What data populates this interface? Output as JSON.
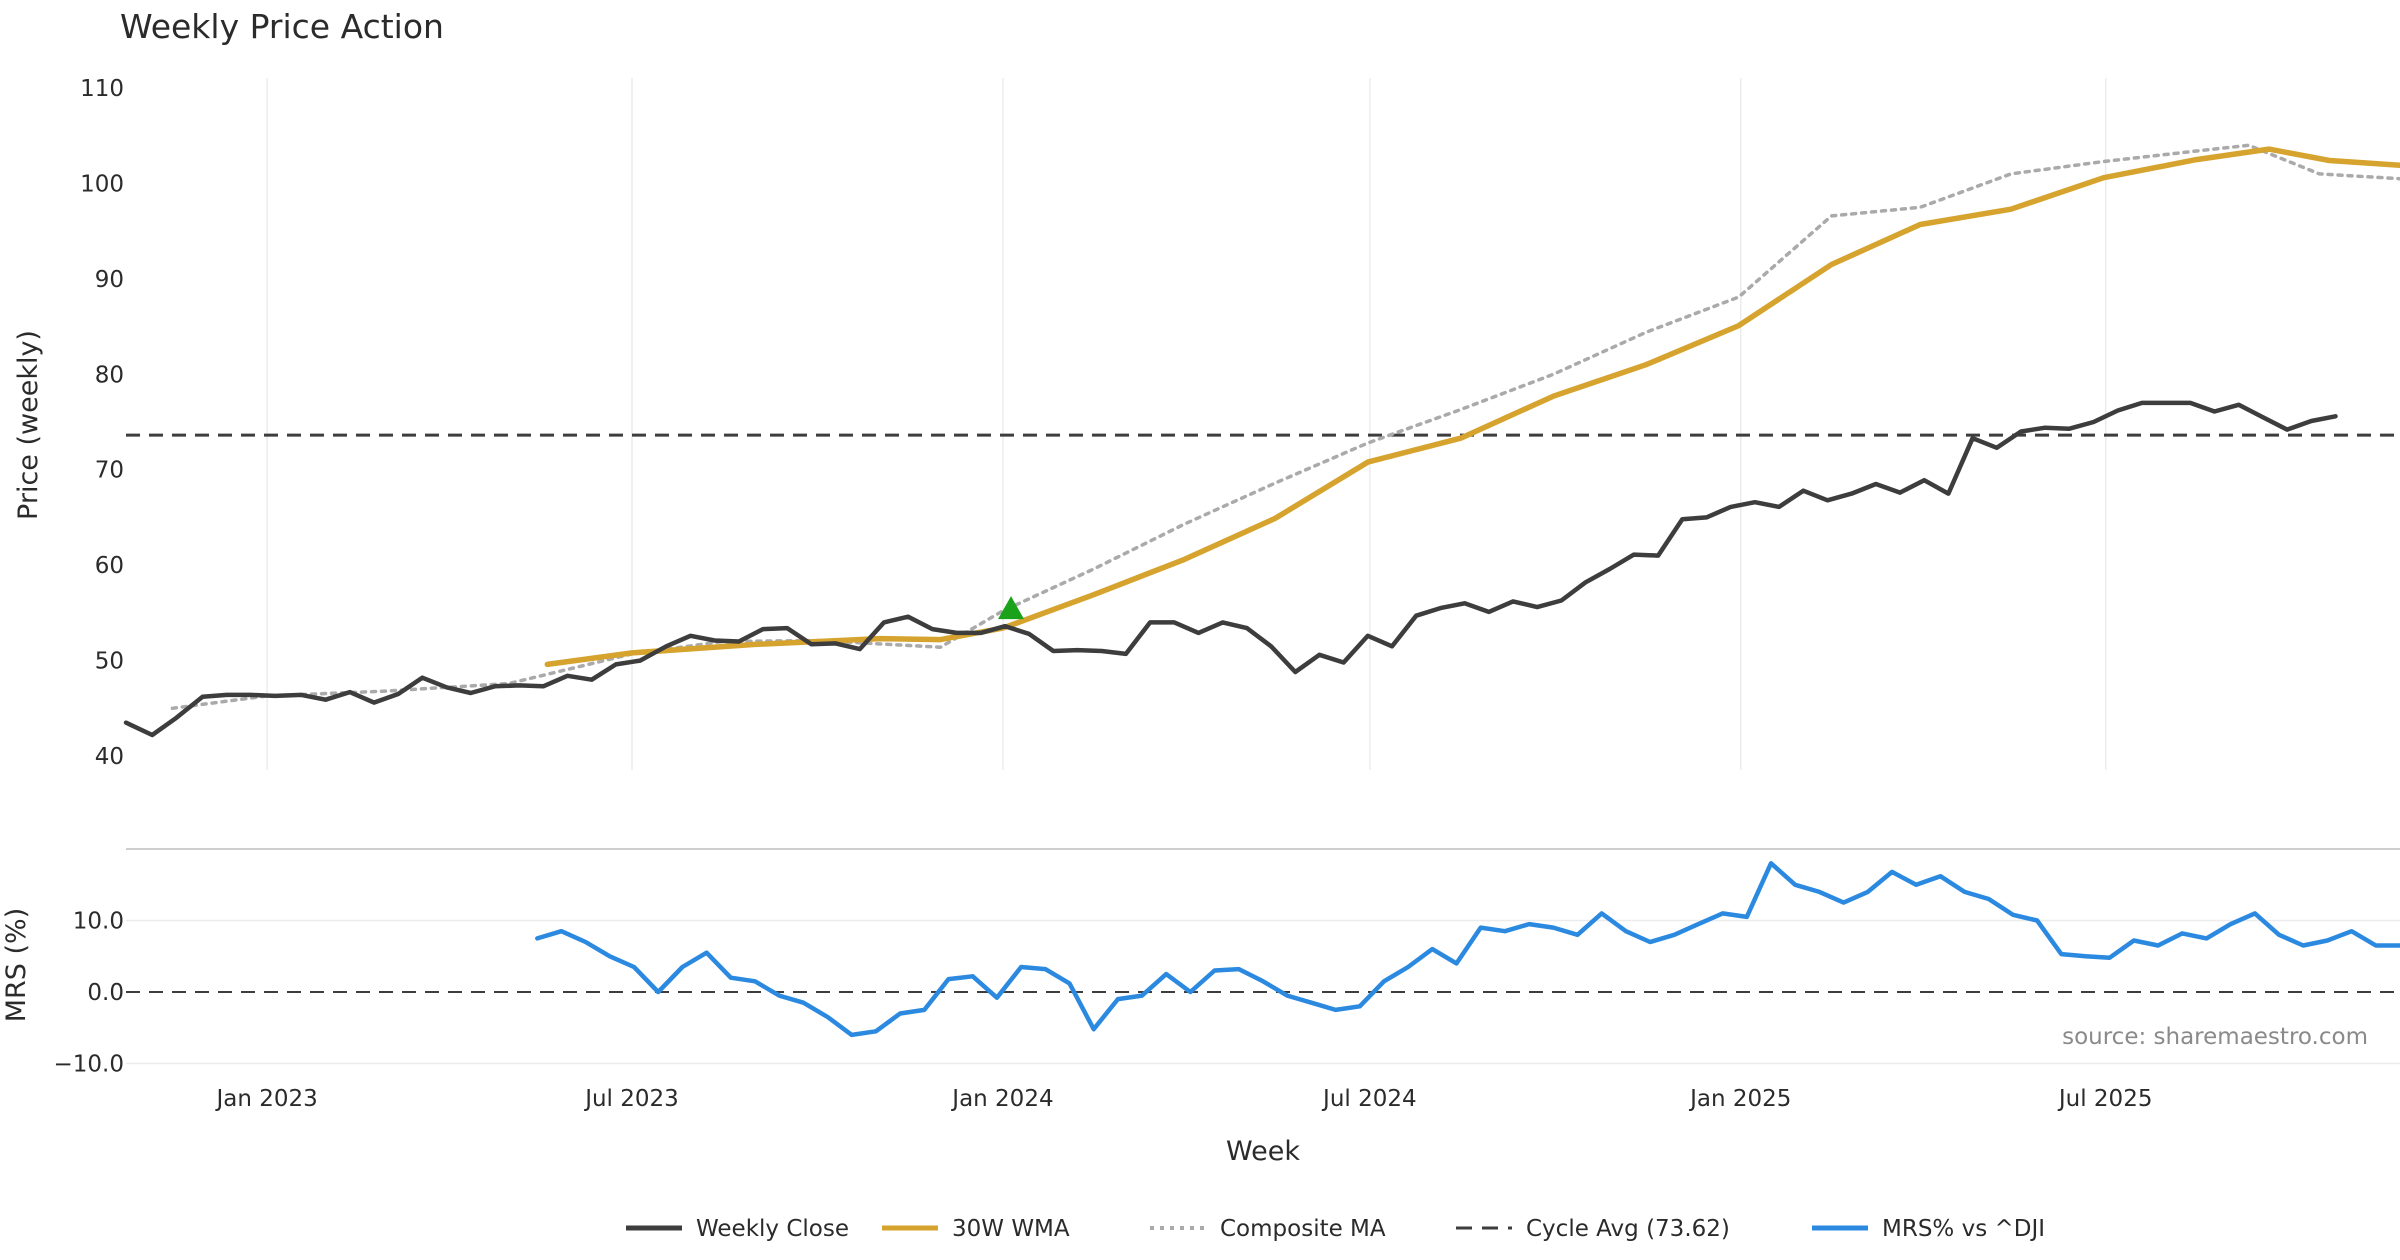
{
  "chart_data": [
    {
      "type": "line",
      "title": "Weekly Price Action",
      "xlabel": "",
      "ylabel": "Price (weekly)",
      "ylim": [
        40,
        110
      ],
      "yticks": [
        "40",
        "50",
        "60",
        "70",
        "80",
        "90",
        "100",
        "110"
      ],
      "x_ticks": [
        {
          "date": "2023-01-01",
          "label": "Jan 2023"
        },
        {
          "date": "2023-07-01",
          "label": "Jul 2023"
        },
        {
          "date": "2024-01-01",
          "label": "Jan 2024"
        },
        {
          "date": "2024-07-01",
          "label": "Jul 2024"
        },
        {
          "date": "2025-01-01",
          "label": "Jan 2025"
        },
        {
          "date": "2025-07-01",
          "label": "Jul 2025"
        }
      ],
      "xlim": [
        "2022-10-23",
        "2025-11-24"
      ],
      "grid": true,
      "cycle_avg": 73.62,
      "signal_marker": {
        "date": "2024-01-05",
        "value": 55.5,
        "color": "#1aa31a",
        "shape": "triangle-up"
      },
      "series": [
        {
          "name": "Weekly Close",
          "color": "#3d3d3d",
          "points": [
            [
              "2022-10-23",
              43.5
            ],
            [
              "2022-11-05",
              42.2
            ],
            [
              "2022-11-17",
              44.0
            ],
            [
              "2022-11-30",
              46.2
            ],
            [
              "2022-12-12",
              46.4
            ],
            [
              "2022-12-24",
              46.4
            ],
            [
              "2023-01-05",
              46.3
            ],
            [
              "2023-01-18",
              46.4
            ],
            [
              "2023-01-30",
              45.9
            ],
            [
              "2023-02-11",
              46.7
            ],
            [
              "2023-02-23",
              45.6
            ],
            [
              "2023-03-07",
              46.5
            ],
            [
              "2023-03-19",
              48.2
            ],
            [
              "2023-03-31",
              47.2
            ],
            [
              "2023-04-12",
              46.6
            ],
            [
              "2023-04-24",
              47.3
            ],
            [
              "2023-05-06",
              47.4
            ],
            [
              "2023-05-18",
              47.3
            ],
            [
              "2023-05-30",
              48.4
            ],
            [
              "2023-06-11",
              48.0
            ],
            [
              "2023-06-23",
              49.6
            ],
            [
              "2023-07-05",
              50.0
            ],
            [
              "2023-07-18",
              51.5
            ],
            [
              "2023-07-30",
              52.6
            ],
            [
              "2023-08-11",
              52.1
            ],
            [
              "2023-08-23",
              52.0
            ],
            [
              "2023-09-04",
              53.3
            ],
            [
              "2023-09-16",
              53.4
            ],
            [
              "2023-09-28",
              51.7
            ],
            [
              "2023-10-10",
              51.8
            ],
            [
              "2023-10-22",
              51.2
            ],
            [
              "2023-11-03",
              54.0
            ],
            [
              "2023-11-15",
              54.6
            ],
            [
              "2023-11-27",
              53.3
            ],
            [
              "2023-12-09",
              52.9
            ],
            [
              "2023-12-21",
              52.9
            ],
            [
              "2024-01-02",
              53.6
            ],
            [
              "2024-01-14",
              52.8
            ],
            [
              "2024-01-26",
              51.0
            ],
            [
              "2024-02-07",
              51.1
            ],
            [
              "2024-02-19",
              51.0
            ],
            [
              "2024-03-02",
              50.7
            ],
            [
              "2024-03-14",
              54.0
            ],
            [
              "2024-03-26",
              54.0
            ],
            [
              "2024-04-07",
              52.9
            ],
            [
              "2024-04-19",
              54.0
            ],
            [
              "2024-05-01",
              53.4
            ],
            [
              "2024-05-13",
              51.5
            ],
            [
              "2024-05-25",
              48.8
            ],
            [
              "2024-06-06",
              50.6
            ],
            [
              "2024-06-18",
              49.8
            ],
            [
              "2024-06-30",
              52.6
            ],
            [
              "2024-07-12",
              51.5
            ],
            [
              "2024-07-24",
              54.7
            ],
            [
              "2024-08-05",
              55.5
            ],
            [
              "2024-08-17",
              56.0
            ],
            [
              "2024-08-29",
              55.1
            ],
            [
              "2024-09-10",
              56.2
            ],
            [
              "2024-09-22",
              55.6
            ],
            [
              "2024-10-04",
              56.3
            ],
            [
              "2024-10-16",
              58.2
            ],
            [
              "2024-10-28",
              59.6
            ],
            [
              "2024-11-09",
              61.1
            ],
            [
              "2024-11-21",
              61.0
            ],
            [
              "2024-12-03",
              64.8
            ],
            [
              "2024-12-15",
              65.0
            ],
            [
              "2024-12-27",
              66.1
            ],
            [
              "2025-01-08",
              66.6
            ],
            [
              "2025-01-20",
              66.1
            ],
            [
              "2025-02-01",
              67.8
            ],
            [
              "2025-02-13",
              66.8
            ],
            [
              "2025-02-25",
              67.5
            ],
            [
              "2025-03-09",
              68.5
            ],
            [
              "2025-03-21",
              67.6
            ],
            [
              "2025-04-02",
              68.9
            ],
            [
              "2025-04-14",
              67.5
            ],
            [
              "2025-04-26",
              73.3
            ],
            [
              "2025-05-08",
              72.3
            ],
            [
              "2025-05-20",
              74.0
            ],
            [
              "2025-06-01",
              74.4
            ],
            [
              "2025-06-13",
              74.3
            ],
            [
              "2025-06-25",
              75.0
            ],
            [
              "2025-07-07",
              76.2
            ],
            [
              "2025-07-19",
              77.0
            ],
            [
              "2025-07-31",
              77.0
            ],
            [
              "2025-08-12",
              77.0
            ],
            [
              "2025-08-24",
              76.1
            ],
            [
              "2025-09-05",
              76.8
            ],
            [
              "2025-09-17",
              75.5
            ],
            [
              "2025-09-29",
              74.2
            ],
            [
              "2025-10-11",
              75.1
            ],
            [
              "2025-10-23",
              75.6
            ]
          ]
        },
        {
          "name": "30W WMA",
          "color": "#d6a42e",
          "points": [
            [
              "2023-05-20",
              49.6
            ],
            [
              "2023-07-01",
              50.8
            ],
            [
              "2023-09-01",
              51.7
            ],
            [
              "2023-11-01",
              52.3
            ],
            [
              "2023-12-01",
              52.2
            ],
            [
              "2024-01-01",
              53.4
            ],
            [
              "2024-02-15",
              56.9
            ],
            [
              "2024-03-31",
              60.6
            ],
            [
              "2024-05-15",
              64.9
            ],
            [
              "2024-06-30",
              70.8
            ],
            [
              "2024-08-15",
              73.3
            ],
            [
              "2024-09-30",
              77.7
            ],
            [
              "2024-11-15",
              81.0
            ],
            [
              "2024-12-31",
              85.1
            ],
            [
              "2025-02-15",
              91.5
            ],
            [
              "2025-03-31",
              95.7
            ],
            [
              "2025-05-15",
              97.3
            ],
            [
              "2025-06-30",
              100.6
            ],
            [
              "2025-08-15",
              102.5
            ],
            [
              "2025-09-20",
              103.6
            ],
            [
              "2025-10-20",
              102.4
            ],
            [
              "2025-11-24",
              101.9
            ]
          ]
        },
        {
          "name": "Composite MA",
          "color": "#aaaaaa",
          "points": [
            [
              "2022-11-15",
              45.0
            ],
            [
              "2023-01-01",
              46.3
            ],
            [
              "2023-03-01",
              46.8
            ],
            [
              "2023-05-01",
              47.6
            ],
            [
              "2023-07-01",
              50.7
            ],
            [
              "2023-08-15",
              52.0
            ],
            [
              "2023-10-01",
              52.1
            ],
            [
              "2023-12-01",
              51.4
            ],
            [
              "2024-01-01",
              55.2
            ],
            [
              "2024-02-15",
              59.6
            ],
            [
              "2024-03-31",
              64.3
            ],
            [
              "2024-05-15",
              68.6
            ],
            [
              "2024-06-30",
              72.8
            ],
            [
              "2024-08-15",
              76.3
            ],
            [
              "2024-09-30",
              80.0
            ],
            [
              "2024-11-15",
              84.4
            ],
            [
              "2024-12-31",
              88.1
            ],
            [
              "2025-02-15",
              96.6
            ],
            [
              "2025-03-31",
              97.5
            ],
            [
              "2025-05-15",
              101.0
            ],
            [
              "2025-06-30",
              102.3
            ],
            [
              "2025-08-15",
              103.4
            ],
            [
              "2025-09-10",
              104.0
            ],
            [
              "2025-10-15",
              101.0
            ],
            [
              "2025-11-24",
              100.5
            ]
          ]
        }
      ]
    },
    {
      "type": "line",
      "title": "",
      "xlabel": "Week",
      "ylabel": "MRS (%)",
      "ylim": [
        -11,
        20
      ],
      "yticks": [
        "10.0",
        "0.0",
        "−10.0"
      ],
      "ytick_values": [
        10,
        0,
        -10
      ],
      "zero_line": 0,
      "grid": true,
      "series": [
        {
          "name": "MRS% vs ^DJI",
          "color": "#2b8ae0",
          "points": [
            [
              "2023-05-15",
              7.5
            ],
            [
              "2023-05-27",
              8.5
            ],
            [
              "2023-06-08",
              7.0
            ],
            [
              "2023-06-20",
              5.0
            ],
            [
              "2023-07-02",
              3.5
            ],
            [
              "2023-07-14",
              0.0
            ],
            [
              "2023-07-26",
              3.5
            ],
            [
              "2023-08-07",
              5.5
            ],
            [
              "2023-08-19",
              2.0
            ],
            [
              "2023-08-31",
              1.5
            ],
            [
              "2023-09-12",
              -0.5
            ],
            [
              "2023-09-24",
              -1.5
            ],
            [
              "2023-10-06",
              -3.5
            ],
            [
              "2023-10-18",
              -6.0
            ],
            [
              "2023-10-30",
              -5.5
            ],
            [
              "2023-11-11",
              -3.0
            ],
            [
              "2023-11-23",
              -2.5
            ],
            [
              "2023-12-05",
              1.8
            ],
            [
              "2023-12-17",
              2.2
            ],
            [
              "2023-12-29",
              -0.8
            ],
            [
              "2024-01-10",
              3.5
            ],
            [
              "2024-01-22",
              3.2
            ],
            [
              "2024-02-03",
              1.2
            ],
            [
              "2024-02-15",
              -5.2
            ],
            [
              "2024-02-27",
              -1.0
            ],
            [
              "2024-03-10",
              -0.5
            ],
            [
              "2024-03-22",
              2.5
            ],
            [
              "2024-04-03",
              0.0
            ],
            [
              "2024-04-15",
              3.0
            ],
            [
              "2024-04-27",
              3.2
            ],
            [
              "2024-05-09",
              1.5
            ],
            [
              "2024-05-21",
              -0.5
            ],
            [
              "2024-06-02",
              -1.5
            ],
            [
              "2024-06-14",
              -2.5
            ],
            [
              "2024-06-26",
              -2.0
            ],
            [
              "2024-07-08",
              1.5
            ],
            [
              "2024-07-20",
              3.5
            ],
            [
              "2024-08-01",
              6.0
            ],
            [
              "2024-08-13",
              4.0
            ],
            [
              "2024-08-25",
              9.0
            ],
            [
              "2024-09-06",
              8.5
            ],
            [
              "2024-09-18",
              9.5
            ],
            [
              "2024-09-30",
              9.0
            ],
            [
              "2024-10-12",
              8.0
            ],
            [
              "2024-10-24",
              11.0
            ],
            [
              "2024-11-05",
              8.5
            ],
            [
              "2024-11-17",
              7.0
            ],
            [
              "2024-11-29",
              8.0
            ],
            [
              "2024-12-11",
              9.5
            ],
            [
              "2024-12-23",
              11.0
            ],
            [
              "2025-01-04",
              10.5
            ],
            [
              "2025-01-16",
              18.0
            ],
            [
              "2025-01-28",
              15.0
            ],
            [
              "2025-02-09",
              14.0
            ],
            [
              "2025-02-21",
              12.5
            ],
            [
              "2025-03-05",
              14.0
            ],
            [
              "2025-03-17",
              16.8
            ],
            [
              "2025-03-29",
              15.0
            ],
            [
              "2025-04-10",
              16.2
            ],
            [
              "2025-04-22",
              14.0
            ],
            [
              "2025-05-04",
              13.0
            ],
            [
              "2025-05-16",
              10.8
            ],
            [
              "2025-05-28",
              10.0
            ],
            [
              "2025-06-09",
              5.3
            ],
            [
              "2025-06-21",
              5.0
            ],
            [
              "2025-07-03",
              4.8
            ],
            [
              "2025-07-15",
              7.2
            ],
            [
              "2025-07-27",
              6.5
            ],
            [
              "2025-08-08",
              8.2
            ],
            [
              "2025-08-20",
              7.5
            ],
            [
              "2025-09-01",
              9.5
            ],
            [
              "2025-09-13",
              11.0
            ],
            [
              "2025-09-25",
              8.0
            ],
            [
              "2025-10-07",
              6.5
            ],
            [
              "2025-10-19",
              7.2
            ],
            [
              "2025-10-31",
              8.5
            ],
            [
              "2025-11-12",
              6.5
            ],
            [
              "2025-11-24",
              6.5
            ]
          ]
        }
      ],
      "annotation": "source: sharemaestro.com"
    }
  ],
  "legend": {
    "placement": "bottom-center",
    "items": [
      {
        "label": "Weekly Close",
        "color": "#3d3d3d",
        "style": "solid"
      },
      {
        "label": "30W WMA",
        "color": "#d6a42e",
        "style": "solid"
      },
      {
        "label": "Composite MA",
        "color": "#aaaaaa",
        "style": "dotted"
      },
      {
        "label": "Cycle Avg (73.62)",
        "color": "#3d3d3d",
        "style": "dashed"
      },
      {
        "label": "MRS% vs ^DJI",
        "color": "#2b8ae0",
        "style": "solid"
      }
    ]
  }
}
